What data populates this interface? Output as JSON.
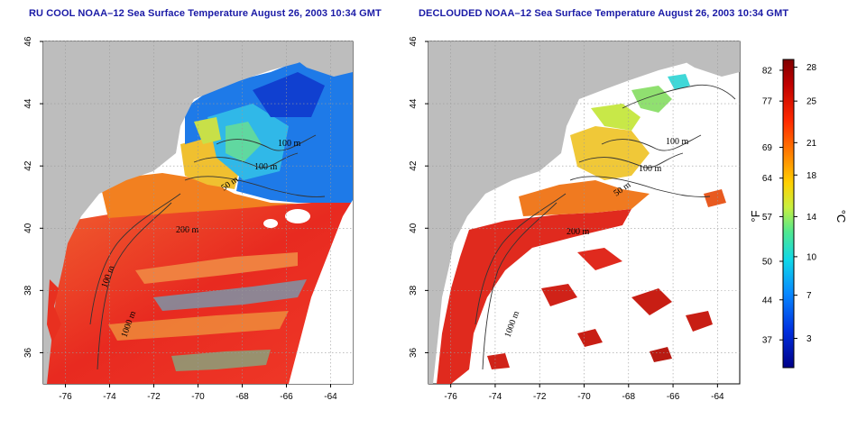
{
  "panels": [
    {
      "id": "left",
      "title": "RU COOL NOAA–12 Sea Surface Temperature August 26, 2003 10:34 GMT"
    },
    {
      "id": "right",
      "title": "DECLOUDED NOAA–12 Sea Surface Temperature August 26, 2003 10:34 GMT"
    }
  ],
  "map": {
    "lon_range": [
      -77,
      -63
    ],
    "lat_range": [
      35,
      46
    ],
    "lon_ticks": [
      "-76",
      "-74",
      "-72",
      "-70",
      "-68",
      "-66",
      "-64"
    ],
    "lat_ticks": [
      "36",
      "38",
      "40",
      "42",
      "44",
      "46"
    ],
    "depth_labels": [
      "100 m",
      "100 m",
      "50 m",
      "200 m",
      "200 m",
      "1000 m",
      "100 m"
    ],
    "colors": {
      "land": "#bdbdbd",
      "cloud_masked": "#ffffff",
      "warm": "#e8281e",
      "cool": "#1e64f0"
    }
  },
  "colorbar": {
    "f_ticks": [
      "82",
      "77",
      "69",
      "64",
      "57",
      "50",
      "44",
      "37"
    ],
    "c_ticks": [
      "28",
      "25",
      "21",
      "18",
      "14",
      "10",
      "7",
      "3"
    ],
    "f_unit": "°F",
    "c_unit": "°C",
    "stops": [
      "#7f0000",
      "#d40000",
      "#ff3a00",
      "#ff8a00",
      "#ffd400",
      "#c8ff30",
      "#40ff90",
      "#00e0ff",
      "#0090ff",
      "#0030ff",
      "#00007f"
    ]
  }
}
